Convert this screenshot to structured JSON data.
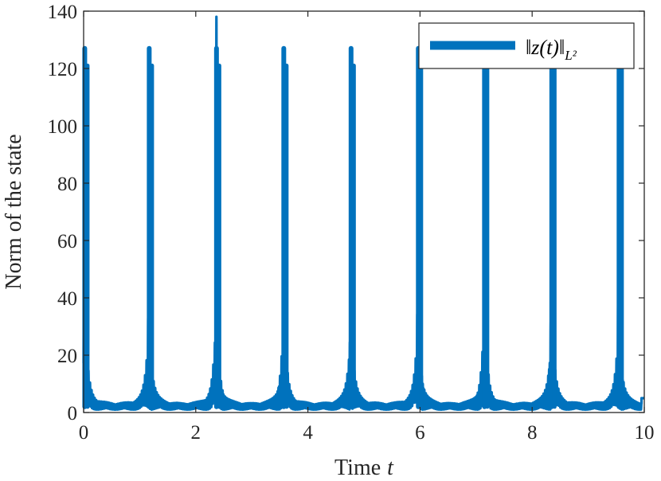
{
  "chart_data": {
    "type": "line",
    "title": "",
    "xlabel": "Time",
    "xlabel_var": "t",
    "ylabel": "Norm of the state",
    "xlim": [
      0,
      10
    ],
    "ylim": [
      0,
      140
    ],
    "x_ticks": [
      0,
      2,
      4,
      6,
      8,
      10
    ],
    "y_ticks": [
      0,
      20,
      40,
      60,
      80,
      100,
      120,
      140
    ],
    "x_tick_labels": [
      "0",
      "2",
      "4",
      "6",
      "8",
      "10"
    ],
    "y_tick_labels": [
      "0",
      "20",
      "40",
      "60",
      "80",
      "100",
      "120",
      "140"
    ],
    "grid": false,
    "legend_position": "top-right",
    "series": [
      {
        "name": "‖z(t)‖_{L²}",
        "color": "#0072BD",
        "period": 1.19,
        "first_spike_t": 0.02,
        "spike_peaks": [
          127,
          127,
          127,
          127,
          127,
          127,
          127,
          127,
          127
        ],
        "spike_times": [
          0.02,
          1.17,
          2.37,
          3.57,
          4.77,
          5.97,
          7.15,
          8.35,
          9.55
        ],
        "trough_min": 1,
        "end_value": 5
      }
    ]
  }
}
